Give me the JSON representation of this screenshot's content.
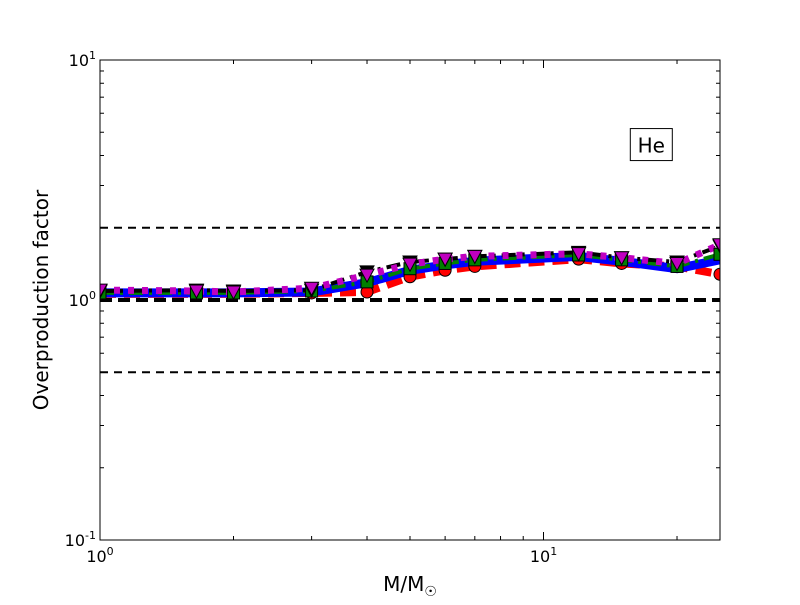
{
  "chart_data": {
    "type": "line",
    "title": "",
    "xlabel": "M/M",
    "xlabel_symbol": "☉",
    "ylabel": "Overproduction factor",
    "xscale": "log",
    "yscale": "log",
    "xlim": [
      1,
      25
    ],
    "ylim": [
      0.1,
      10
    ],
    "grid": false,
    "x_ticks": [
      {
        "value": 1,
        "base": "10",
        "exp": "0"
      },
      {
        "value": 10,
        "base": "10",
        "exp": "1"
      }
    ],
    "y_ticks": [
      {
        "value": 0.1,
        "base": "10",
        "exp": "-1"
      },
      {
        "value": 1,
        "base": "10",
        "exp": "0"
      },
      {
        "value": 10,
        "base": "10",
        "exp": "1"
      }
    ],
    "reference_lines": [
      {
        "y": 2.0,
        "style": "dashed",
        "color": "#000000"
      },
      {
        "y": 1.0,
        "style": "dashed-thick",
        "color": "#000000"
      },
      {
        "y": 0.5,
        "style": "dashed",
        "color": "#000000"
      }
    ],
    "annotation": {
      "text": "He",
      "x": 17.5,
      "y": 4.4
    },
    "series": [
      {
        "color": "#ff0000",
        "style": "dashed",
        "marker": "circle",
        "x": [
          1,
          1.65,
          2,
          3,
          4,
          5,
          6,
          7,
          12,
          15,
          20,
          25
        ],
        "y": [
          1.06,
          1.06,
          1.06,
          1.07,
          1.08,
          1.25,
          1.33,
          1.38,
          1.48,
          1.42,
          1.38,
          1.28
        ]
      },
      {
        "color": "#0000ff",
        "style": "solid",
        "marker": "none",
        "x": [
          1,
          1.65,
          2,
          3,
          4,
          5,
          6,
          7,
          12,
          15,
          20,
          25
        ],
        "y": [
          1.07,
          1.07,
          1.07,
          1.08,
          1.18,
          1.33,
          1.4,
          1.45,
          1.52,
          1.45,
          1.35,
          1.47
        ]
      },
      {
        "color": "#008000",
        "style": "dashdot",
        "marker": "square",
        "x": [
          1,
          1.65,
          2,
          3,
          4,
          5,
          6,
          7,
          12,
          15,
          20,
          25
        ],
        "y": [
          1.07,
          1.07,
          1.07,
          1.09,
          1.19,
          1.35,
          1.42,
          1.47,
          1.54,
          1.47,
          1.38,
          1.55
        ]
      },
      {
        "color": "#000000",
        "style": "dashdot",
        "marker": "triangle-down",
        "x": [
          1,
          1.65,
          2,
          3,
          4,
          5,
          6,
          7,
          12,
          15,
          20,
          25
        ],
        "y": [
          1.09,
          1.1,
          1.09,
          1.1,
          1.31,
          1.44,
          1.48,
          1.52,
          1.58,
          1.5,
          1.44,
          1.68
        ]
      },
      {
        "color": "#bf00bf",
        "style": "dotted",
        "marker": "triangle-down",
        "x": [
          1,
          1.65,
          2,
          3,
          4,
          5,
          6,
          7,
          12,
          15,
          20,
          25
        ],
        "y": [
          1.1,
          1.09,
          1.08,
          1.12,
          1.27,
          1.41,
          1.48,
          1.52,
          1.56,
          1.5,
          1.42,
          1.7
        ]
      }
    ]
  }
}
